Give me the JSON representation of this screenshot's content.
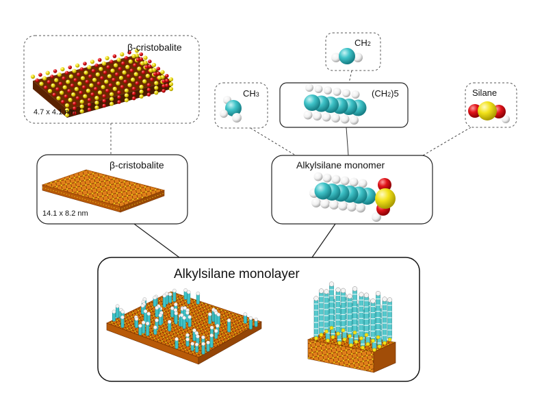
{
  "panels": {
    "crystal_unit": {
      "title": "β-cristobalite",
      "size": "4.7 x 4.1 nm"
    },
    "crystal_slab": {
      "title": "β-cristobalite",
      "size": "14.1 x 8.2 nm"
    },
    "ch3": {
      "label_main": "CH",
      "label_sub": "3"
    },
    "ch2": {
      "label_main": "CH",
      "label_sub": "2"
    },
    "ch2_chain": {
      "label_main": "(CH",
      "label_sub": "2",
      "label_tail": ")5"
    },
    "silane": {
      "label": "Silane"
    },
    "monomer": {
      "title": "Alkylsilane monomer"
    },
    "monolayer": {
      "title": "Alkylsilane monolayer"
    }
  },
  "colors": {
    "carbon": "#3fc3c8",
    "hydrogen": "#ffffff",
    "silicon": "#f2e21a",
    "oxygen": "#e0141a",
    "slab": "#d9750f"
  }
}
